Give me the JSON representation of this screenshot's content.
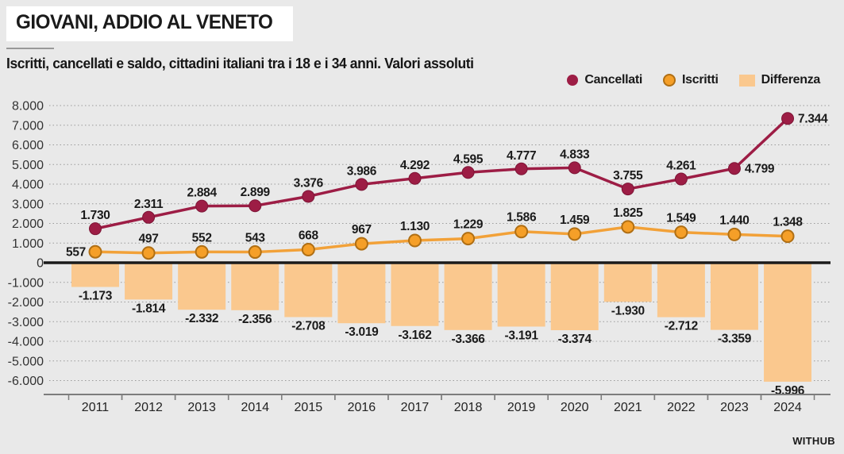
{
  "header": {
    "title": "GIOVANI, ADDIO AL VENETO",
    "subtitle": "Iscritti, cancellati e saldo, cittadini italiani tra i 18 e i 34 anni. Valori assoluti"
  },
  "branding": {
    "logo_text": "WITHUB"
  },
  "colors": {
    "background": "#e9e9e9",
    "cancellati": "#9d1d45",
    "cancellati_stroke": "#7d1536",
    "iscritti_line": "#f2a138",
    "iscritti_fill": "#f59f28",
    "iscritti_stroke": "#b06f14",
    "differenza_bar": "#fac88e",
    "grid": "#9a9a9a",
    "zero_line": "#1a1a1a",
    "axis": "#7d7d7d",
    "label_text": "#1a1a1a",
    "tick_text": "#333333"
  },
  "chart_data": {
    "type": "line+bar combo",
    "title": "GIOVANI, ADDIO AL VENETO",
    "subtitle": "Iscritti, cancellati e saldo, cittadini italiani tra i 18 e i 34 anni. Valori assoluti",
    "categories": [
      "2011",
      "2012",
      "2013",
      "2014",
      "2015",
      "2016",
      "2017",
      "2018",
      "2019",
      "2020",
      "2021",
      "2022",
      "2023",
      "2024"
    ],
    "series": [
      {
        "name": "Cancellati",
        "type": "line",
        "values": [
          1730,
          2311,
          2884,
          2899,
          3376,
          3986,
          4292,
          4595,
          4777,
          4833,
          3755,
          4261,
          4799,
          7344
        ],
        "labels": [
          "1.730",
          "2.311",
          "2.884",
          "2.899",
          "3.376",
          "3.986",
          "4.292",
          "4.595",
          "4.777",
          "4.833",
          "3.755",
          "4.261",
          "4.799",
          "7.344"
        ]
      },
      {
        "name": "Iscritti",
        "type": "line",
        "values": [
          557,
          497,
          552,
          543,
          668,
          967,
          1130,
          1229,
          1586,
          1459,
          1825,
          1549,
          1440,
          1348
        ],
        "labels": [
          "557",
          "497",
          "552",
          "543",
          "668",
          "967",
          "1.130",
          "1.229",
          "1.586",
          "1.459",
          "1.825",
          "1.549",
          "1.440",
          "1.348"
        ]
      },
      {
        "name": "Differenza",
        "type": "bar",
        "values": [
          -1173,
          -1814,
          -2332,
          -2356,
          -2708,
          -3019,
          -3162,
          -3366,
          -3191,
          -3374,
          -1930,
          -2712,
          -3359,
          -5996
        ],
        "labels": [
          "-1.173",
          "-1.814",
          "-2.332",
          "-2.356",
          "-2.708",
          "-3.019",
          "-3.162",
          "-3.366",
          "-3.191",
          "-3.374",
          "-1.930",
          "-2.712",
          "-3.359",
          "-5.996"
        ]
      }
    ],
    "ylim": [
      -6000,
      8000
    ],
    "ytick_step": 1000,
    "ytick_labels": [
      "8.000",
      "7.000",
      "6.000",
      "5.000",
      "4.000",
      "3.000",
      "2.000",
      "1.000",
      "0",
      "-1.000",
      "-2.000",
      "-3.000",
      "-4.000",
      "-5.000",
      "-6.000"
    ],
    "grid": "horizontal dotted gridlines on",
    "legend_position": "top-right",
    "legend": [
      "Cancellati",
      "Iscritti",
      "Differenza"
    ]
  }
}
